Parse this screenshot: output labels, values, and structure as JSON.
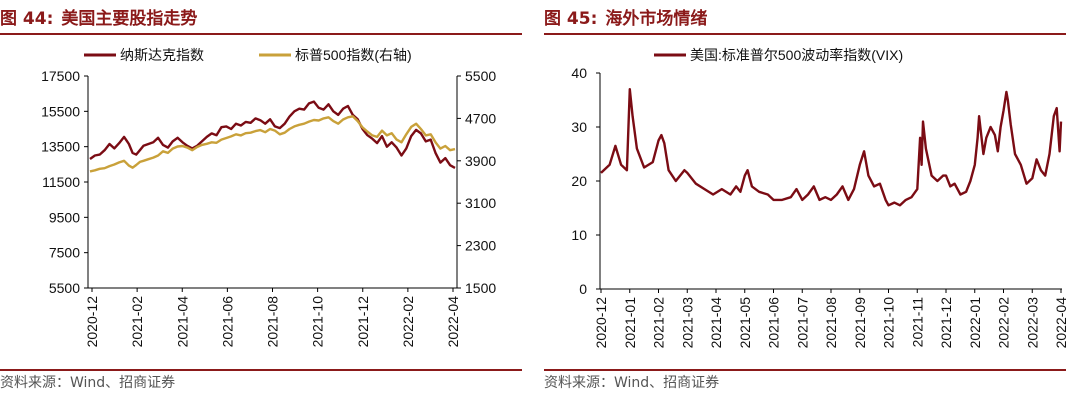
{
  "left": {
    "fig_num": "图 44:",
    "fig_title": "美国主要股指走势",
    "source": "资料来源：Wind、招商证券",
    "chart_data": {
      "type": "line",
      "x_ticks": [
        "2020-12",
        "2021-02",
        "2021-04",
        "2021-06",
        "2021-08",
        "2021-10",
        "2021-12",
        "2022-02",
        "2022-04"
      ],
      "y_left": {
        "ticks": [
          "17500",
          "15500",
          "13500",
          "11500",
          "9500",
          "7500",
          "5500"
        ],
        "lim": [
          5500,
          17500
        ]
      },
      "y_right": {
        "ticks": [
          "5500",
          "4700",
          "3900",
          "3100",
          "2300",
          "1500"
        ],
        "lim": [
          1500,
          5500
        ]
      },
      "series": [
        {
          "name": "纳斯达克指数",
          "axis": "left",
          "color": "#7B0C14",
          "values": [
            [
              0,
              12800
            ],
            [
              2,
              13000
            ],
            [
              4,
              13050
            ],
            [
              6,
              13300
            ],
            [
              8,
              13650
            ],
            [
              10,
              13400
            ],
            [
              12,
              13700
            ],
            [
              14,
              14050
            ],
            [
              16,
              13650
            ],
            [
              17.5,
              13150
            ],
            [
              19,
              13050
            ],
            [
              20.5,
              13300
            ],
            [
              22,
              13550
            ],
            [
              24,
              13650
            ],
            [
              26,
              13750
            ],
            [
              28,
              14000
            ],
            [
              30,
              13600
            ],
            [
              32,
              13450
            ],
            [
              34,
              13800
            ],
            [
              36,
              14000
            ],
            [
              38,
              13750
            ],
            [
              40,
              13550
            ],
            [
              42,
              13400
            ],
            [
              44,
              13550
            ],
            [
              46,
              13800
            ],
            [
              48,
              14050
            ],
            [
              50,
              14250
            ],
            [
              52,
              14150
            ],
            [
              54,
              14600
            ],
            [
              56,
              14650
            ],
            [
              58,
              14500
            ],
            [
              60,
              14800
            ],
            [
              62,
              14700
            ],
            [
              64,
              14900
            ],
            [
              66,
              14850
            ],
            [
              68,
              15100
            ],
            [
              70,
              15000
            ],
            [
              72,
              14800
            ],
            [
              74,
              15050
            ],
            [
              76,
              14650
            ],
            [
              78,
              14550
            ],
            [
              80,
              14800
            ],
            [
              82,
              15200
            ],
            [
              84,
              15500
            ],
            [
              86,
              15650
            ],
            [
              88,
              15600
            ],
            [
              90,
              15950
            ],
            [
              92,
              16050
            ],
            [
              94,
              15700
            ],
            [
              96,
              15600
            ],
            [
              98,
              15900
            ],
            [
              100,
              15500
            ],
            [
              102,
              15300
            ],
            [
              104,
              15650
            ],
            [
              106,
              15800
            ],
            [
              108,
              15300
            ],
            [
              110,
              15050
            ],
            [
              112,
              14500
            ],
            [
              114,
              14150
            ],
            [
              116,
              13950
            ],
            [
              118,
              13700
            ],
            [
              120,
              14100
            ],
            [
              122,
              13500
            ],
            [
              124,
              13750
            ],
            [
              126,
              13450
            ],
            [
              128,
              13000
            ],
            [
              130,
              13400
            ],
            [
              132,
              14100
            ],
            [
              134,
              14450
            ],
            [
              136,
              14250
            ],
            [
              138,
              13800
            ],
            [
              140,
              13900
            ],
            [
              142,
              13150
            ],
            [
              144,
              12600
            ],
            [
              146,
              12850
            ],
            [
              148,
              12450
            ],
            [
              150,
              12300
            ]
          ]
        },
        {
          "name": "标普500指数(右轴)",
          "axis": "right",
          "color": "#C9A13A",
          "values": [
            [
              0,
              3700
            ],
            [
              2,
              3720
            ],
            [
              4,
              3750
            ],
            [
              6,
              3760
            ],
            [
              8,
              3800
            ],
            [
              10,
              3830
            ],
            [
              12,
              3870
            ],
            [
              14,
              3900
            ],
            [
              16,
              3810
            ],
            [
              17.5,
              3770
            ],
            [
              19,
              3820
            ],
            [
              20.5,
              3880
            ],
            [
              22,
              3900
            ],
            [
              24,
              3930
            ],
            [
              26,
              3960
            ],
            [
              28,
              4000
            ],
            [
              30,
              4080
            ],
            [
              32,
              4050
            ],
            [
              34,
              4130
            ],
            [
              36,
              4170
            ],
            [
              38,
              4180
            ],
            [
              40,
              4150
            ],
            [
              42,
              4100
            ],
            [
              44,
              4160
            ],
            [
              46,
              4200
            ],
            [
              48,
              4220
            ],
            [
              50,
              4250
            ],
            [
              52,
              4240
            ],
            [
              54,
              4300
            ],
            [
              56,
              4330
            ],
            [
              58,
              4360
            ],
            [
              60,
              4400
            ],
            [
              62,
              4380
            ],
            [
              64,
              4420
            ],
            [
              66,
              4430
            ],
            [
              68,
              4460
            ],
            [
              70,
              4480
            ],
            [
              72,
              4440
            ],
            [
              74,
              4500
            ],
            [
              76,
              4470
            ],
            [
              78,
              4400
            ],
            [
              80,
              4430
            ],
            [
              82,
              4500
            ],
            [
              84,
              4550
            ],
            [
              86,
              4580
            ],
            [
              88,
              4600
            ],
            [
              90,
              4640
            ],
            [
              92,
              4670
            ],
            [
              94,
              4660
            ],
            [
              96,
              4700
            ],
            [
              98,
              4720
            ],
            [
              100,
              4650
            ],
            [
              102,
              4600
            ],
            [
              104,
              4680
            ],
            [
              106,
              4720
            ],
            [
              108,
              4740
            ],
            [
              110,
              4650
            ],
            [
              112,
              4530
            ],
            [
              114,
              4450
            ],
            [
              116,
              4380
            ],
            [
              118,
              4350
            ],
            [
              120,
              4470
            ],
            [
              122,
              4380
            ],
            [
              124,
              4420
            ],
            [
              126,
              4300
            ],
            [
              128,
              4250
            ],
            [
              130,
              4400
            ],
            [
              132,
              4540
            ],
            [
              134,
              4600
            ],
            [
              136,
              4500
            ],
            [
              138,
              4380
            ],
            [
              140,
              4400
            ],
            [
              142,
              4250
            ],
            [
              144,
              4130
            ],
            [
              146,
              4180
            ],
            [
              148,
              4100
            ],
            [
              150,
              4120
            ]
          ]
        }
      ]
    }
  },
  "right": {
    "fig_num": "图 45:",
    "fig_title": "海外市场情绪",
    "source": "资料来源：Wind、招商证券",
    "chart_data": {
      "type": "line",
      "x_ticks": [
        "2020-12",
        "2021-01",
        "2021-02",
        "2021-03",
        "2021-04",
        "2021-05",
        "2021-06",
        "2021-07",
        "2021-08",
        "2021-09",
        "2021-10",
        "2021-11",
        "2021-12",
        "2022-01",
        "2022-02",
        "2022-03",
        "2022-04"
      ],
      "y": {
        "ticks": [
          "40",
          "30",
          "20",
          "10",
          "0"
        ],
        "lim": [
          0,
          40
        ]
      },
      "series": [
        {
          "name": "美国:标准普尔500波动率指数(VIX)",
          "color": "#7B0C14",
          "values": [
            [
              0,
              21.5
            ],
            [
              0.3,
              23
            ],
            [
              0.5,
              26.5
            ],
            [
              0.7,
              23
            ],
            [
              0.9,
              22
            ],
            [
              1.0,
              37
            ],
            [
              1.1,
              32
            ],
            [
              1.25,
              26
            ],
            [
              1.5,
              22.5
            ],
            [
              1.8,
              23.5
            ],
            [
              2.0,
              27.5
            ],
            [
              2.1,
              28.5
            ],
            [
              2.2,
              27
            ],
            [
              2.35,
              22
            ],
            [
              2.6,
              20
            ],
            [
              2.9,
              22
            ],
            [
              3.0,
              21.5
            ],
            [
              3.3,
              19.5
            ],
            [
              3.6,
              18.5
            ],
            [
              3.9,
              17.5
            ],
            [
              4.2,
              18.5
            ],
            [
              4.5,
              17.5
            ],
            [
              4.7,
              19
            ],
            [
              4.85,
              18
            ],
            [
              5.0,
              21
            ],
            [
              5.1,
              22
            ],
            [
              5.25,
              19
            ],
            [
              5.5,
              18
            ],
            [
              5.8,
              17.5
            ],
            [
              6.0,
              16.5
            ],
            [
              6.3,
              16.5
            ],
            [
              6.6,
              17
            ],
            [
              6.8,
              18.5
            ],
            [
              7.0,
              16.5
            ],
            [
              7.2,
              17.5
            ],
            [
              7.4,
              19
            ],
            [
              7.6,
              16.5
            ],
            [
              7.8,
              17
            ],
            [
              8.0,
              16.5
            ],
            [
              8.2,
              17.5
            ],
            [
              8.4,
              19
            ],
            [
              8.6,
              16.5
            ],
            [
              8.8,
              18.5
            ],
            [
              9.0,
              23
            ],
            [
              9.15,
              25.5
            ],
            [
              9.3,
              21
            ],
            [
              9.5,
              19
            ],
            [
              9.7,
              19.5
            ],
            [
              9.9,
              16.5
            ],
            [
              10.0,
              15.5
            ],
            [
              10.2,
              16
            ],
            [
              10.4,
              15.5
            ],
            [
              10.6,
              16.5
            ],
            [
              10.8,
              17
            ],
            [
              11.0,
              18.5
            ],
            [
              11.1,
              28
            ],
            [
              11.15,
              23
            ],
            [
              11.2,
              31
            ],
            [
              11.3,
              26
            ],
            [
              11.5,
              21
            ],
            [
              11.7,
              20
            ],
            [
              11.9,
              21
            ],
            [
              12.0,
              21
            ],
            [
              12.15,
              19
            ],
            [
              12.3,
              19.5
            ],
            [
              12.5,
              17.5
            ],
            [
              12.7,
              18
            ],
            [
              12.85,
              20
            ],
            [
              13.0,
              23
            ],
            [
              13.1,
              28
            ],
            [
              13.15,
              32
            ],
            [
              13.3,
              25
            ],
            [
              13.4,
              28
            ],
            [
              13.55,
              30
            ],
            [
              13.7,
              28.5
            ],
            [
              13.8,
              25.5
            ],
            [
              13.9,
              30
            ],
            [
              14.0,
              33
            ],
            [
              14.1,
              36.5
            ],
            [
              14.15,
              35
            ],
            [
              14.25,
              30.5
            ],
            [
              14.4,
              25
            ],
            [
              14.6,
              23
            ],
            [
              14.8,
              19.5
            ],
            [
              15.0,
              20.5
            ],
            [
              15.15,
              24
            ],
            [
              15.3,
              22
            ],
            [
              15.45,
              21
            ],
            [
              15.6,
              25
            ],
            [
              15.75,
              32
            ],
            [
              15.85,
              33.5
            ],
            [
              15.95,
              25.5
            ],
            [
              16.0,
              31
            ]
          ]
        }
      ]
    }
  }
}
